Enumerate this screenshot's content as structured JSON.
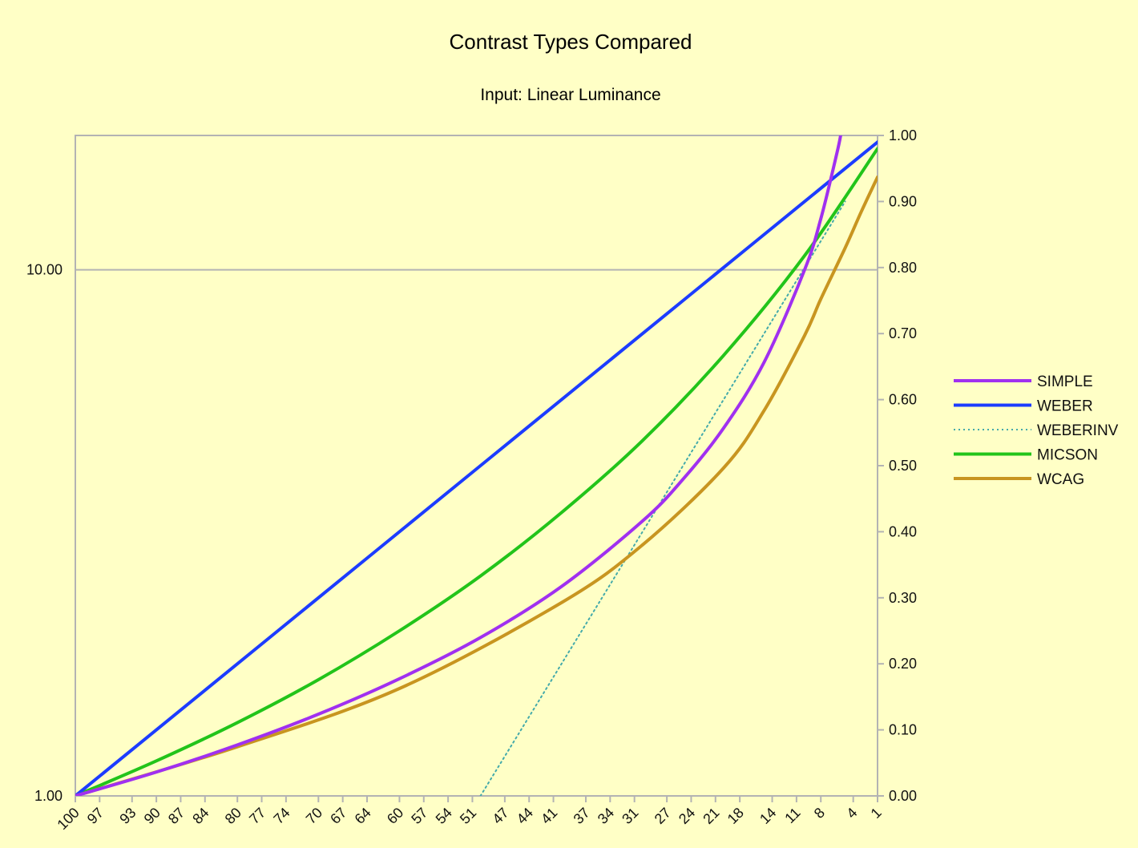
{
  "chart_data": {
    "type": "line",
    "title": "Contrast Types Compared",
    "subtitle": "Input: Linear Luminance",
    "xlabel": "",
    "ylabel_left": "",
    "ylabel_right": "",
    "x_ticks": [
      "100",
      "97",
      "93",
      "90",
      "87",
      "84",
      "80",
      "77",
      "74",
      "70",
      "67",
      "64",
      "60",
      "57",
      "54",
      "51",
      "47",
      "44",
      "41",
      "37",
      "34",
      "31",
      "27",
      "24",
      "21",
      "18",
      "14",
      "11",
      "8",
      "4",
      "1"
    ],
    "x_range": [
      100,
      1
    ],
    "y_left": {
      "scale": "log",
      "range": [
        1,
        18
      ],
      "ticks": [
        "10.00",
        "1.00"
      ],
      "tick_values": [
        10,
        1
      ]
    },
    "y_right": {
      "scale": "linear",
      "range": [
        0,
        1
      ],
      "ticks": [
        "0.00",
        "0.10",
        "0.20",
        "0.30",
        "0.40",
        "0.50",
        "0.60",
        "0.70",
        "0.80",
        "0.90",
        "1.00"
      ]
    },
    "grid": {
      "horizontal_at_left": [
        10
      ]
    },
    "legend_position": "right",
    "series": [
      {
        "name": "SIMPLE",
        "axis": "left",
        "color": "#a030f0",
        "style": "solid",
        "x": [
          100,
          90,
          80,
          70,
          60,
          50,
          40,
          30,
          25,
          20,
          15,
          10,
          8,
          6,
          5.5
        ],
        "y": [
          1.0,
          1.11,
          1.25,
          1.43,
          1.67,
          2.0,
          2.5,
          3.33,
          4.0,
          5.0,
          6.67,
          10.0,
          12.5,
          16.7,
          18.2
        ]
      },
      {
        "name": "WEBER",
        "axis": "right",
        "color": "#1c3cff",
        "style": "solid",
        "x": [
          100,
          75,
          50,
          25,
          1
        ],
        "y": [
          0.0,
          0.25,
          0.5,
          0.75,
          0.99
        ]
      },
      {
        "name": "WEBERINV",
        "axis": "right",
        "color": "#44aaaa",
        "style": "dotted",
        "x": [
          50,
          40,
          30,
          25,
          20,
          15,
          10,
          8,
          6,
          5
        ],
        "y": [
          0.0,
          0.2,
          0.4,
          0.5,
          0.6,
          0.7,
          0.8,
          0.84,
          0.88,
          0.9
        ]
      },
      {
        "name": "MICSON",
        "axis": "right",
        "color": "#22c41a",
        "style": "solid",
        "x": [
          100,
          90,
          80,
          70,
          60,
          50,
          40,
          30,
          20,
          10,
          1
        ],
        "y": [
          0.0,
          0.053,
          0.111,
          0.176,
          0.25,
          0.333,
          0.429,
          0.538,
          0.667,
          0.818,
          0.98
        ]
      },
      {
        "name": "WCAG",
        "axis": "left",
        "color": "#c89520",
        "style": "solid",
        "x": [
          100,
          80,
          60,
          40,
          30,
          20,
          15,
          10,
          8,
          5,
          3,
          1
        ],
        "y": [
          1.0,
          1.24,
          1.6,
          2.33,
          3.0,
          4.2,
          5.4,
          7.5,
          8.8,
          11.0,
          12.9,
          15.0
        ]
      }
    ]
  }
}
